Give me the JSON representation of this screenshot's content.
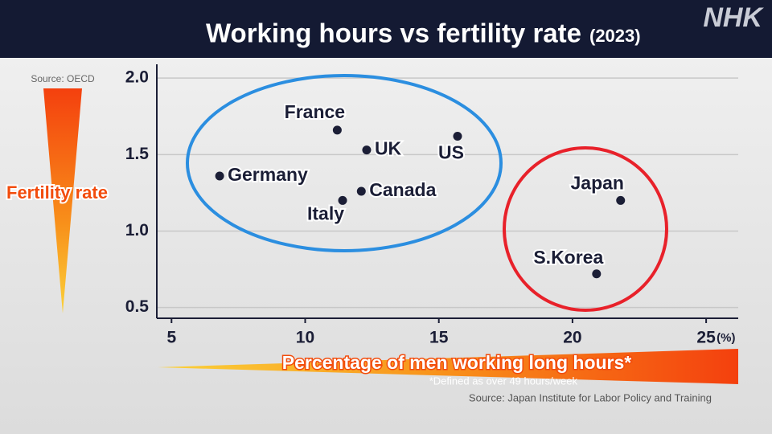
{
  "chart_data": {
    "type": "scatter",
    "title": "Working hours vs fertility rate",
    "subtitle": "(2023)",
    "logo": "NHK",
    "y_label": "Fertility rate",
    "y_source": "Source: OECD",
    "x_label": "Percentage of men working long hours*",
    "x_unit": "(%)",
    "footnote": "*Defined as over 49 hours/week",
    "source": "Source: Japan Institute for Labor Policy and Training",
    "labels": [
      "France",
      "UK",
      "US",
      "Germany",
      "Canada",
      "Italy",
      "Japan",
      "S.Korea"
    ],
    "x": [
      11.2,
      12.3,
      15.7,
      6.8,
      12.1,
      11.4,
      21.8,
      20.9
    ],
    "values": [
      1.66,
      1.53,
      1.62,
      1.36,
      1.26,
      1.2,
      1.2,
      0.72
    ],
    "color": "#1b1e36",
    "xlim": [
      4.45,
      26.2
    ],
    "ylim": [
      0.43,
      2.09
    ],
    "xticks": [
      5,
      10,
      15,
      20,
      25
    ],
    "yticks": [
      {
        "value": 0.5,
        "label": "0.5"
      },
      {
        "value": 1,
        "label": "1.0"
      },
      {
        "value": 1.5,
        "label": "1.5"
      },
      {
        "value": 2,
        "label": "2.0"
      }
    ],
    "grid": true
  }
}
